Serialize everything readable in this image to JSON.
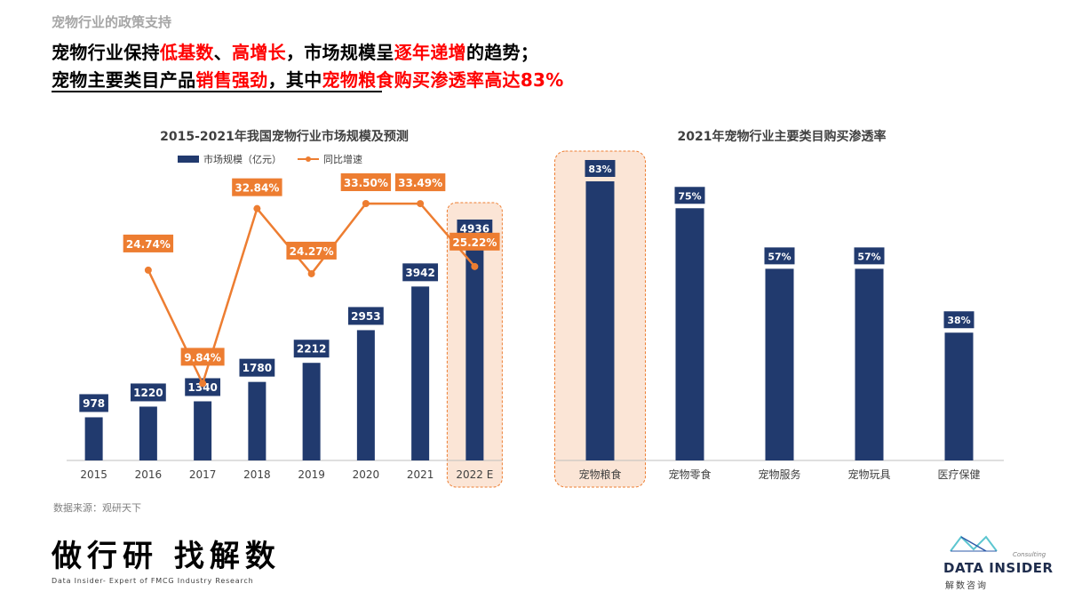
{
  "header": {
    "kicker": "宠物行业的政策支持",
    "line1": [
      {
        "text": "宠物行业保持",
        "hl": false
      },
      {
        "text": "低基数",
        "hl": true
      },
      {
        "text": "、",
        "hl": false
      },
      {
        "text": "高增长",
        "hl": true
      },
      {
        "text": "，市场规模呈",
        "hl": false
      },
      {
        "text": "逐年递增",
        "hl": true
      },
      {
        "text": "的趋势；",
        "hl": false
      }
    ],
    "line2": [
      {
        "text": "宠物主要类目产品",
        "hl": false
      },
      {
        "text": "销售强劲",
        "hl": true
      },
      {
        "text": "，其中",
        "hl": false
      },
      {
        "text": "宠物粮食购买渗透率高达83%",
        "hl": true
      }
    ]
  },
  "chart_data": [
    {
      "type": "bar",
      "title": "2015-2021年我国宠物行业市场规模及预测",
      "categories": [
        "2015",
        "2016",
        "2017",
        "2018",
        "2019",
        "2020",
        "2021",
        "2022 E"
      ],
      "series": [
        {
          "name": "市场规模（亿元）",
          "type": "bar",
          "values": [
            978,
            1220,
            1340,
            1780,
            2212,
            2953,
            3942,
            4936
          ],
          "labels": [
            "978",
            "1220",
            "1340",
            "1780",
            "2212",
            "2953",
            "3942",
            "4936"
          ]
        },
        {
          "name": "同比增速",
          "type": "line",
          "values": [
            null,
            24.74,
            9.84,
            32.84,
            24.27,
            33.5,
            33.49,
            25.22
          ],
          "labels": [
            "",
            "24.74%",
            "9.84%",
            "32.84%",
            "24.27%",
            "33.50%",
            "33.49%",
            "25.22%"
          ]
        }
      ],
      "highlight_category": "2022 E",
      "legend_position": "top",
      "grid": false,
      "colors": {
        "bar": "#213a6e",
        "line": "#ed7d31",
        "highlight": "#fbe5d6"
      }
    },
    {
      "type": "bar",
      "title": "2021年宠物行业主要类目购买渗透率",
      "categories": [
        "宠物粮食",
        "宠物零食",
        "宠物服务",
        "宠物玩具",
        "医疗保健"
      ],
      "values": [
        83,
        75,
        57,
        57,
        38
      ],
      "labels": [
        "83%",
        "75%",
        "57%",
        "57%",
        "38%"
      ],
      "highlight_category": "宠物粮食",
      "grid": false,
      "colors": {
        "bar": "#213a6e",
        "highlight": "#fbe5d6"
      }
    }
  ],
  "footer": {
    "source": "数据来源：观研天下",
    "brand_cn": "做行研 找解数",
    "brand_en": "Data Insider- Expert of FMCG Industry Research",
    "logo_consult": "Consulting",
    "logo_text": "DATA INSIDER",
    "logo_sub": "解数咨询"
  }
}
